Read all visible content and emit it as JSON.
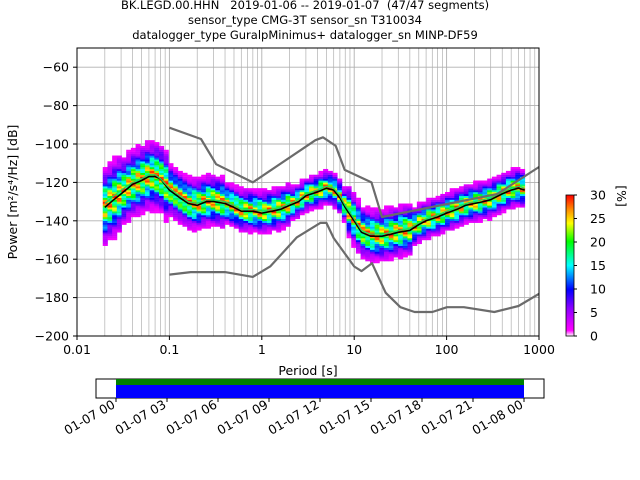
{
  "title_lines": [
    "BK.LEGD.00.HHN   2019-01-06 -- 2019-01-07  (47/47 segments)",
    "sensor_type CMG-3T sensor_sn T310034",
    "datalogger_type GuralpMinimus+ datalogger_sn MINP-DF59"
  ],
  "chart_data": {
    "type": "heatmap",
    "xlabel": "Period [s]",
    "ylabel": "Power [m²/s⁴/Hz] [dB]",
    "xscale": "log",
    "xlim": [
      0.01,
      1000
    ],
    "ylim": [
      -200,
      -50
    ],
    "x_ticks": [
      0.01,
      0.1,
      1,
      10,
      100,
      1000
    ],
    "x_tick_labels": [
      "0.01",
      "0.1",
      "1",
      "10",
      "100",
      "1000"
    ],
    "y_ticks": [
      -200,
      -180,
      -160,
      -140,
      -120,
      -100,
      -80,
      -60
    ],
    "y_tick_labels": [
      "−200",
      "−180",
      "−160",
      "−140",
      "−120",
      "−100",
      "−80",
      "−60"
    ],
    "grid": true,
    "colorbar": {
      "label": "[%]",
      "range": [
        0,
        30
      ],
      "ticks": [
        0,
        5,
        10,
        15,
        20,
        25,
        30
      ],
      "tick_labels": [
        "0",
        "5",
        "10",
        "15",
        "20",
        "25",
        "30"
      ]
    },
    "series": [
      {
        "role": "mean",
        "color": "#000000",
        "x": [
          0.02,
          0.025,
          0.03,
          0.04,
          0.05,
          0.06,
          0.07,
          0.08,
          0.1,
          0.13,
          0.16,
          0.2,
          0.25,
          0.3,
          0.4,
          0.5,
          0.6,
          0.8,
          1,
          1.3,
          1.6,
          2,
          2.5,
          3,
          4,
          5,
          6,
          7,
          8,
          10,
          12,
          15,
          20,
          25,
          30,
          40,
          50,
          60,
          80,
          100,
          130,
          160,
          200,
          250,
          300,
          400,
          500,
          600,
          700
        ],
        "y": [
          -133,
          -129,
          -126,
          -121,
          -119,
          -117,
          -117,
          -118,
          -124,
          -128,
          -131,
          -132,
          -130,
          -130,
          -131,
          -133,
          -135,
          -135,
          -136,
          -135,
          -134,
          -132,
          -130,
          -127,
          -125,
          -123,
          -124,
          -128,
          -133,
          -140,
          -146,
          -148,
          -148,
          -147,
          -146,
          -145,
          -142,
          -140,
          -138,
          -136,
          -134,
          -132,
          -131,
          -130,
          -129,
          -126,
          -124,
          -123,
          -124
        ]
      },
      {
        "role": "mode",
        "color": "#1ed760",
        "x": [
          0.02,
          0.025,
          0.03,
          0.04,
          0.05,
          0.06,
          0.07,
          0.08,
          0.1,
          0.13,
          0.16,
          0.2,
          0.25,
          0.3,
          0.4,
          0.5,
          0.6,
          0.8,
          1,
          1.3,
          1.6,
          2,
          2.5,
          3,
          4,
          5,
          6,
          7,
          8,
          10,
          12,
          15,
          20,
          25,
          30,
          40,
          50,
          60,
          80,
          100,
          130,
          160,
          200,
          250,
          300,
          400,
          500,
          600,
          700
        ],
        "y": [
          -131,
          -127,
          -124,
          -120,
          -118,
          -116,
          -116,
          -118,
          -123,
          -127,
          -130,
          -131,
          -129,
          -129,
          -130,
          -132,
          -134,
          -134,
          -135,
          -134,
          -133,
          -131,
          -129,
          -126,
          -124,
          -122,
          -123,
          -127,
          -132,
          -139,
          -145,
          -147,
          -147,
          -146,
          -145,
          -144,
          -141,
          -139,
          -137,
          -135,
          -133,
          -131,
          -130,
          -129,
          -128,
          -125,
          -123,
          -122,
          -123
        ]
      },
      {
        "role": "noise-model-high",
        "color": "#6b6b6b",
        "x": [
          0.1,
          0.22,
          0.32,
          0.8,
          3.8,
          4.6,
          6.3,
          7.9,
          15.4,
          20,
          354.8,
          1000
        ],
        "y": [
          -91.5,
          -97.4,
          -110.5,
          -120,
          -98,
          -96.5,
          -101,
          -113.5,
          -120,
          -138,
          -126,
          -112
        ]
      },
      {
        "role": "noise-model-low",
        "color": "#6b6b6b",
        "x": [
          0.1,
          0.17,
          0.4,
          0.8,
          1.24,
          2.4,
          4.3,
          5,
          6,
          10,
          12,
          15.6,
          21.9,
          31.6,
          45,
          70,
          101,
          154,
          328,
          600,
          1000
        ],
        "y": [
          -168,
          -166.7,
          -166.7,
          -169.2,
          -163.7,
          -148.6,
          -141.1,
          -141.1,
          -149,
          -163.8,
          -166.2,
          -162.1,
          -177.5,
          -185,
          -187.5,
          -187.5,
          -185,
          -185,
          -187.5,
          -184.4,
          -178
        ]
      }
    ]
  },
  "timeline": {
    "tick_labels": [
      "01-07 00",
      "01-07 03",
      "01-07 06",
      "01-07 09",
      "01-07 12",
      "01-07 15",
      "01-07 18",
      "01-07 21",
      "01-08 00"
    ],
    "coverage_color": "#0000ff",
    "data_color": "#008000"
  }
}
